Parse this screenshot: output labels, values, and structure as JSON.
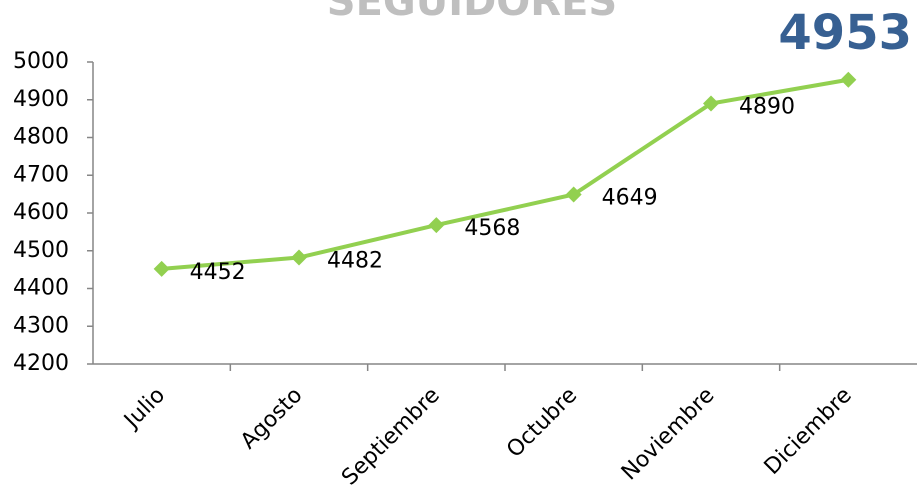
{
  "chart_data": {
    "type": "line",
    "title": "SEGUIDORES",
    "categories": [
      "Julio",
      "Agosto",
      "Septiembre",
      "Octubre",
      "Noviembre",
      "Diciembre"
    ],
    "series": [
      {
        "name": "Seguidores",
        "color": "#92d050",
        "values": [
          4452,
          4482,
          4568,
          4649,
          4890,
          4953
        ]
      }
    ],
    "ylim": [
      4200,
      5000
    ],
    "yticks": [
      4200,
      4300,
      4400,
      4500,
      4600,
      4700,
      4800,
      4900,
      5000
    ],
    "grid": false,
    "highlight_color": "#376092"
  }
}
